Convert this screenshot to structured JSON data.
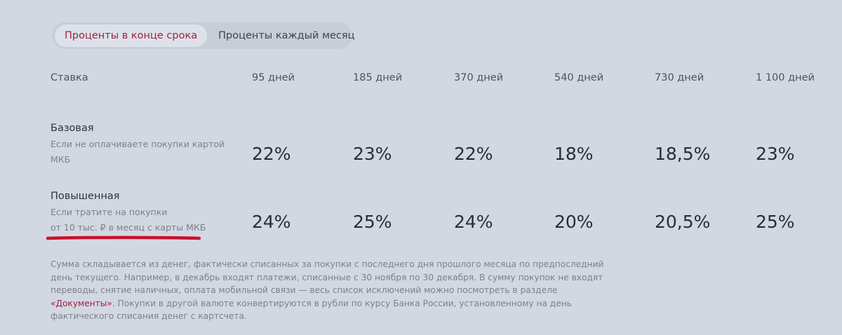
{
  "tabs": {
    "active": "Проценты в конце срока",
    "inactive": "Проценты каждый месяц"
  },
  "table": {
    "rate_header": "Ставка",
    "terms": [
      "95 дней",
      "185 дней",
      "370 дней",
      "540 дней",
      "730 дней",
      "1 100 дней"
    ],
    "rows": [
      {
        "title": "Базовая",
        "subtitle": "Если не оплачиваете покупки картой МКБ",
        "rates": [
          "22%",
          "23%",
          "22%",
          "18%",
          "18,5%",
          "23%"
        ]
      },
      {
        "title": "Повышенная",
        "subtitle_line1": "Если тратите на покупки",
        "subtitle_line2": "от 10 тыс. ₽ в месяц с карты МКБ",
        "rates": [
          "24%",
          "25%",
          "24%",
          "20%",
          "20,5%",
          "25%"
        ]
      }
    ]
  },
  "footnote": {
    "text_before_link": "Сумма складывается из денег, фактически списанных за покупки с последнего дня прошлого месяца по предпоследний день текущего. Например, в декабрь входят платежи, списанные с 30 ноября по 30 декабря. В сумму покупок не входят переводы, снятие наличных, оплата мобильной связи — весь список исключений можно посмотреть в разделе ",
    "link": "«Документы»",
    "text_after_link": ". Покупки в другой валюте конвертируются в рубли по курсу Банка России, установленному на день фактического списания денег с картсчета."
  },
  "colors": {
    "background": "#d2d8e1",
    "accent": "#a3213e",
    "highlight_underline": "#c8102e"
  }
}
